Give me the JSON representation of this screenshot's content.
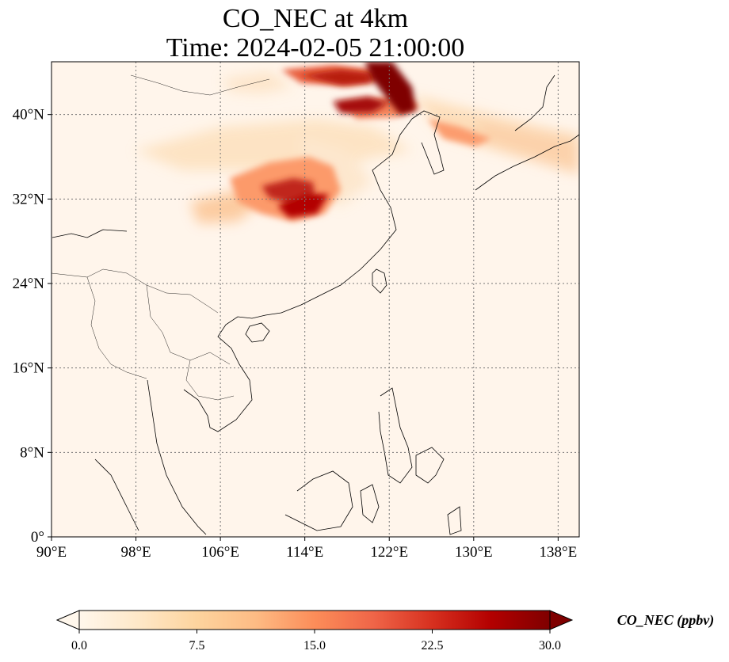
{
  "title": {
    "line1": "CO_NEC at 4km",
    "line2": "Time: 2024-02-05 21:00:00"
  },
  "map": {
    "lon_range": [
      90,
      140
    ],
    "lat_range": [
      0,
      45
    ],
    "x_ticks": [
      "90°E",
      "98°E",
      "106°E",
      "114°E",
      "122°E",
      "130°E",
      "138°E"
    ],
    "y_ticks": [
      "0°",
      "8°N",
      "16°N",
      "24°N",
      "32°N",
      "40°N"
    ],
    "gridlines": "dotted",
    "background_color": "#fff5eb",
    "coastline_color": "#000000"
  },
  "colorbar": {
    "label": "CO_NEC (ppbv)",
    "ticks": [
      "0.0",
      "7.5",
      "15.0",
      "22.5",
      "30.0"
    ],
    "range": [
      0,
      30
    ],
    "extend": "both",
    "colormap": "OrRd",
    "colors": [
      "#fff7ec",
      "#fee8c8",
      "#fdd49e",
      "#fdbb84",
      "#fc8d59",
      "#ef6548",
      "#d7301f",
      "#b30000",
      "#7f0000"
    ]
  }
}
